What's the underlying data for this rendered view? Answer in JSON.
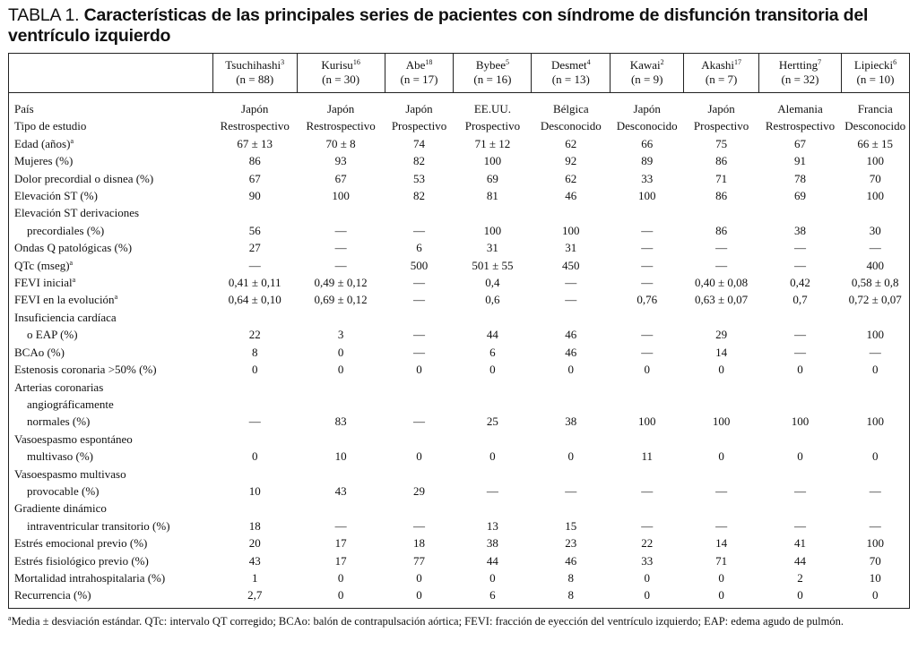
{
  "title": {
    "lead": "TABLA 1.",
    "main": "Características de las principales series de pacientes con síndrome de disfunción transitoria del ventrículo izquierdo"
  },
  "columns": [
    {
      "name": "Tsuchihashi",
      "ref": "3",
      "n": "(n = 88)"
    },
    {
      "name": "Kurisu",
      "ref": "16",
      "n": "(n = 30)"
    },
    {
      "name": "Abe",
      "ref": "18",
      "n": "(n = 17)"
    },
    {
      "name": "Bybee",
      "ref": "5",
      "n": "(n = 16)"
    },
    {
      "name": "Desmet",
      "ref": "4",
      "n": "(n = 13)"
    },
    {
      "name": "Kawai",
      "ref": "2",
      "n": "(n = 9)"
    },
    {
      "name": "Akashi",
      "ref": "17",
      "n": "(n = 7)"
    },
    {
      "name": "Hertting",
      "ref": "7",
      "n": "(n = 32)"
    },
    {
      "name": "Lipiecki",
      "ref": "6",
      "n": "(n = 10)"
    }
  ],
  "rows": [
    {
      "label": [
        "País"
      ],
      "sup": "",
      "values": [
        "Japón",
        "Japón",
        "Japón",
        "EE.UU.",
        "Bélgica",
        "Japón",
        "Japón",
        "Alemania",
        "Francia"
      ]
    },
    {
      "label": [
        "Tipo de estudio"
      ],
      "sup": "",
      "values": [
        "Restrospectivo",
        "Restrospectivo",
        "Prospectivo",
        "Prospectivo",
        "Desconocido",
        "Desconocido",
        "Prospectivo",
        "Restrospectivo",
        "Desconocido"
      ]
    },
    {
      "label": [
        "Edad (años)"
      ],
      "sup": "a",
      "values": [
        "67 ± 13",
        "70 ± 8",
        "74",
        "71 ± 12",
        "62",
        "66",
        "75",
        "67",
        "66 ± 15"
      ]
    },
    {
      "label": [
        "Mujeres (%)"
      ],
      "sup": "",
      "values": [
        "86",
        "93",
        "82",
        "100",
        "92",
        "89",
        "86",
        "91",
        "100"
      ]
    },
    {
      "label": [
        "Dolor precordial o disnea (%)"
      ],
      "sup": "",
      "values": [
        "67",
        "67",
        "53",
        "69",
        "62",
        "33",
        "71",
        "78",
        "70"
      ]
    },
    {
      "label": [
        "Elevación ST (%)"
      ],
      "sup": "",
      "values": [
        "90",
        "100",
        "82",
        "81",
        "46",
        "100",
        "86",
        "69",
        "100"
      ]
    },
    {
      "label": [
        "Elevación ST derivaciones",
        "precordiales (%)"
      ],
      "sup": "",
      "values": [
        "56",
        "—",
        "—",
        "100",
        "100",
        "—",
        "86",
        "38",
        "30"
      ]
    },
    {
      "label": [
        "Ondas Q patológicas (%)"
      ],
      "sup": "",
      "values": [
        "27",
        "—",
        "6",
        "31",
        "31",
        "—",
        "—",
        "—",
        "—"
      ]
    },
    {
      "label": [
        "QTc (mseg)"
      ],
      "sup": "a",
      "values": [
        "—",
        "—",
        "500",
        "501 ± 55",
        "450",
        "—",
        "—",
        "—",
        "400"
      ]
    },
    {
      "label": [
        "FEVI inicial"
      ],
      "sup": "a",
      "values": [
        "0,41 ± 0,11",
        "0,49 ± 0,12",
        "—",
        "0,4",
        "—",
        "—",
        "0,40 ± 0,08",
        "0,42",
        "0,58 ± 0,8"
      ]
    },
    {
      "label": [
        "FEVI en la evolución"
      ],
      "sup": "a",
      "values": [
        "0,64 ± 0,10",
        "0,69 ± 0,12",
        "—",
        "0,6",
        "—",
        "0,76",
        "0,63 ± 0,07",
        "0,7",
        "0,72 ± 0,07"
      ]
    },
    {
      "label": [
        "Insuficiencia cardíaca",
        "o EAP (%)"
      ],
      "sup": "",
      "values": [
        "22",
        "3",
        "—",
        "44",
        "46",
        "—",
        "29",
        "—",
        "100"
      ]
    },
    {
      "label": [
        "BCAo (%)"
      ],
      "sup": "",
      "values": [
        "8",
        "0",
        "—",
        "6",
        "46",
        "—",
        "14",
        "—",
        "—"
      ]
    },
    {
      "label": [
        "Estenosis coronaria >50% (%)"
      ],
      "sup": "",
      "values": [
        "0",
        "0",
        "0",
        "0",
        "0",
        "0",
        "0",
        "0",
        "0"
      ]
    },
    {
      "label": [
        "Arterias coronarias",
        "angiográficamente",
        "normales (%)"
      ],
      "sup": "",
      "values": [
        "—",
        "83",
        "—",
        "25",
        "38",
        "100",
        "100",
        "100",
        "100"
      ]
    },
    {
      "label": [
        "Vasoespasmo espontáneo",
        "multivaso (%)"
      ],
      "sup": "",
      "values": [
        "0",
        "10",
        "0",
        "0",
        "0",
        "11",
        "0",
        "0",
        "0"
      ]
    },
    {
      "label": [
        "Vasoespasmo multivaso",
        "provocable (%)"
      ],
      "sup": "",
      "values": [
        "10",
        "43",
        "29",
        "—",
        "—",
        "—",
        "—",
        "—",
        "—"
      ]
    },
    {
      "label": [
        "Gradiente dinámico",
        "intraventricular transitorio (%)"
      ],
      "sup": "",
      "values": [
        "18",
        "—",
        "—",
        "13",
        "15",
        "—",
        "—",
        "—",
        "—"
      ]
    },
    {
      "label": [
        "Estrés emocional previo (%)"
      ],
      "sup": "",
      "values": [
        "20",
        "17",
        "18",
        "38",
        "23",
        "22",
        "14",
        "41",
        "100"
      ]
    },
    {
      "label": [
        "Estrés fisiológico previo (%)"
      ],
      "sup": "",
      "values": [
        "43",
        "17",
        "77",
        "44",
        "46",
        "33",
        "71",
        "44",
        "70"
      ]
    },
    {
      "label": [
        "Mortalidad intrahospitalaria (%)"
      ],
      "sup": "",
      "values": [
        "1",
        "0",
        "0",
        "0",
        "8",
        "0",
        "0",
        "2",
        "10"
      ]
    },
    {
      "label": [
        "Recurrencia (%)"
      ],
      "sup": "",
      "values": [
        "2,7",
        "0",
        "0",
        "6",
        "8",
        "0",
        "0",
        "0",
        "0"
      ]
    }
  ],
  "footnote": {
    "mark": "a",
    "text": "Media ± desviación estándar. QTc: intervalo QT corregido; BCAo: balón de contrapulsación aórtica; FEVI: fracción de eyección del ventrículo izquierdo; EAP: edema agudo de pulmón."
  }
}
